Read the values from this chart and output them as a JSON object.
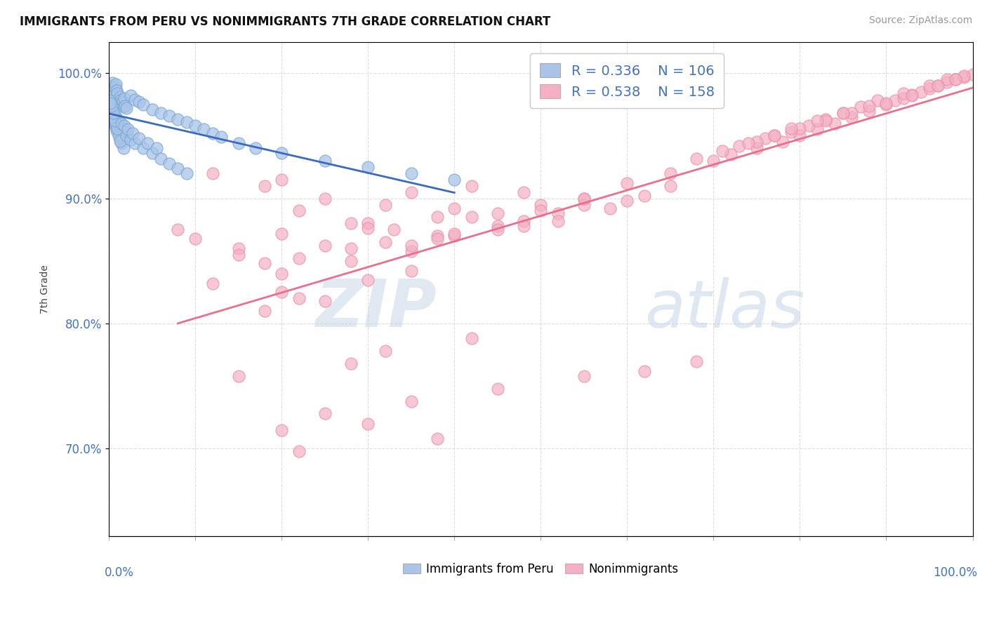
{
  "title": "IMMIGRANTS FROM PERU VS NONIMMIGRANTS 7TH GRADE CORRELATION CHART",
  "source": "Source: ZipAtlas.com",
  "ylabel": "7th Grade",
  "ytick_values": [
    0.7,
    0.8,
    0.9,
    1.0
  ],
  "blue_R": 0.336,
  "blue_N": 106,
  "pink_R": 0.538,
  "pink_N": 158,
  "blue_color": "#aac4e8",
  "blue_edge_color": "#7aaad4",
  "blue_line_color": "#3a6bbf",
  "pink_color": "#f4b0c4",
  "pink_edge_color": "#e890a8",
  "pink_line_color": "#e8708c",
  "legend_label_blue": "Immigrants from Peru",
  "legend_label_pink": "Nonimmigrants",
  "xmin": 0.0,
  "xmax": 1.0,
  "ymin": 0.63,
  "ymax": 1.025,
  "blue_scatter_x": [
    0.001,
    0.002,
    0.003,
    0.004,
    0.005,
    0.006,
    0.007,
    0.008,
    0.009,
    0.01,
    0.011,
    0.012,
    0.013,
    0.014,
    0.015,
    0.016,
    0.017,
    0.018,
    0.019,
    0.02,
    0.002,
    0.004,
    0.006,
    0.008,
    0.01,
    0.012,
    0.014,
    0.016,
    0.018,
    0.02,
    0.003,
    0.005,
    0.007,
    0.009,
    0.011,
    0.013,
    0.015,
    0.017,
    0.001,
    0.003,
    0.005,
    0.007,
    0.009,
    0.011,
    0.013,
    0.002,
    0.004,
    0.006,
    0.008,
    0.01,
    0.001,
    0.003,
    0.005,
    0.007,
    0.002,
    0.004,
    0.006,
    0.001,
    0.003,
    0.002,
    0.025,
    0.03,
    0.035,
    0.04,
    0.05,
    0.06,
    0.07,
    0.08,
    0.09,
    0.1,
    0.11,
    0.12,
    0.13,
    0.15,
    0.17,
    0.2,
    0.25,
    0.3,
    0.35,
    0.4,
    0.02,
    0.025,
    0.03,
    0.04,
    0.05,
    0.06,
    0.07,
    0.08,
    0.09,
    0.015,
    0.018,
    0.022,
    0.028,
    0.035,
    0.045,
    0.055
  ],
  "blue_scatter_y": [
    0.99,
    0.988,
    0.985,
    0.992,
    0.987,
    0.983,
    0.989,
    0.991,
    0.986,
    0.984,
    0.978,
    0.975,
    0.981,
    0.976,
    0.979,
    0.977,
    0.973,
    0.98,
    0.974,
    0.972,
    0.971,
    0.969,
    0.967,
    0.965,
    0.963,
    0.961,
    0.959,
    0.957,
    0.955,
    0.953,
    0.968,
    0.964,
    0.96,
    0.956,
    0.952,
    0.948,
    0.944,
    0.94,
    0.97,
    0.966,
    0.962,
    0.958,
    0.954,
    0.95,
    0.946,
    0.972,
    0.968,
    0.964,
    0.96,
    0.956,
    0.974,
    0.97,
    0.966,
    0.962,
    0.976,
    0.972,
    0.968,
    0.978,
    0.974,
    0.976,
    0.982,
    0.979,
    0.977,
    0.975,
    0.971,
    0.968,
    0.966,
    0.963,
    0.961,
    0.958,
    0.955,
    0.952,
    0.949,
    0.944,
    0.94,
    0.936,
    0.93,
    0.925,
    0.92,
    0.915,
    0.95,
    0.947,
    0.944,
    0.94,
    0.936,
    0.932,
    0.928,
    0.924,
    0.92,
    0.96,
    0.958,
    0.955,
    0.952,
    0.948,
    0.944,
    0.94
  ],
  "pink_scatter_x": [
    0.08,
    0.15,
    0.22,
    0.28,
    0.32,
    0.18,
    0.25,
    0.35,
    0.12,
    0.2,
    0.3,
    0.4,
    0.45,
    0.38,
    0.5,
    0.55,
    0.42,
    0.48,
    0.6,
    0.65,
    0.7,
    0.72,
    0.75,
    0.78,
    0.8,
    0.82,
    0.84,
    0.86,
    0.88,
    0.9,
    0.91,
    0.92,
    0.93,
    0.94,
    0.95,
    0.96,
    0.97,
    0.98,
    0.99,
    1.0,
    0.73,
    0.76,
    0.79,
    0.81,
    0.83,
    0.85,
    0.87,
    0.89,
    0.92,
    0.95,
    0.97,
    0.99,
    0.75,
    0.77,
    0.8,
    0.83,
    0.86,
    0.9,
    0.93,
    0.96,
    0.98,
    0.68,
    0.71,
    0.74,
    0.77,
    0.79,
    0.82,
    0.85,
    0.88,
    0.1,
    0.2,
    0.3,
    0.5,
    0.6,
    0.15,
    0.25,
    0.38,
    0.52,
    0.48,
    0.33,
    0.42,
    0.55,
    0.62,
    0.2,
    0.28,
    0.35,
    0.18,
    0.22,
    0.4,
    0.58,
    0.12,
    0.32,
    0.45,
    0.55,
    0.65,
    0.28,
    0.38,
    0.48,
    0.2,
    0.3,
    0.35,
    0.25,
    0.18,
    0.22,
    0.4,
    0.52,
    0.35,
    0.45,
    0.15,
    0.28,
    0.32,
    0.42,
    0.22,
    0.38,
    0.3,
    0.2,
    0.25,
    0.35,
    0.45,
    0.55,
    0.62,
    0.68
  ],
  "pink_scatter_y": [
    0.875,
    0.86,
    0.89,
    0.88,
    0.895,
    0.91,
    0.9,
    0.905,
    0.92,
    0.915,
    0.88,
    0.892,
    0.888,
    0.885,
    0.895,
    0.9,
    0.91,
    0.905,
    0.912,
    0.92,
    0.93,
    0.935,
    0.94,
    0.945,
    0.95,
    0.955,
    0.96,
    0.965,
    0.97,
    0.975,
    0.978,
    0.98,
    0.983,
    0.985,
    0.988,
    0.99,
    0.993,
    0.995,
    0.997,
    0.999,
    0.942,
    0.948,
    0.953,
    0.958,
    0.963,
    0.968,
    0.973,
    0.978,
    0.984,
    0.99,
    0.995,
    0.998,
    0.945,
    0.95,
    0.956,
    0.962,
    0.968,
    0.976,
    0.982,
    0.99,
    0.995,
    0.932,
    0.938,
    0.944,
    0.95,
    0.956,
    0.962,
    0.968,
    0.974,
    0.868,
    0.872,
    0.876,
    0.89,
    0.898,
    0.855,
    0.862,
    0.87,
    0.888,
    0.882,
    0.875,
    0.885,
    0.895,
    0.902,
    0.84,
    0.85,
    0.858,
    0.848,
    0.852,
    0.87,
    0.892,
    0.832,
    0.865,
    0.878,
    0.9,
    0.91,
    0.86,
    0.868,
    0.878,
    0.825,
    0.835,
    0.842,
    0.818,
    0.81,
    0.82,
    0.872,
    0.882,
    0.862,
    0.875,
    0.758,
    0.768,
    0.778,
    0.788,
    0.698,
    0.708,
    0.72,
    0.715,
    0.728,
    0.738,
    0.748,
    0.758,
    0.762,
    0.77
  ]
}
